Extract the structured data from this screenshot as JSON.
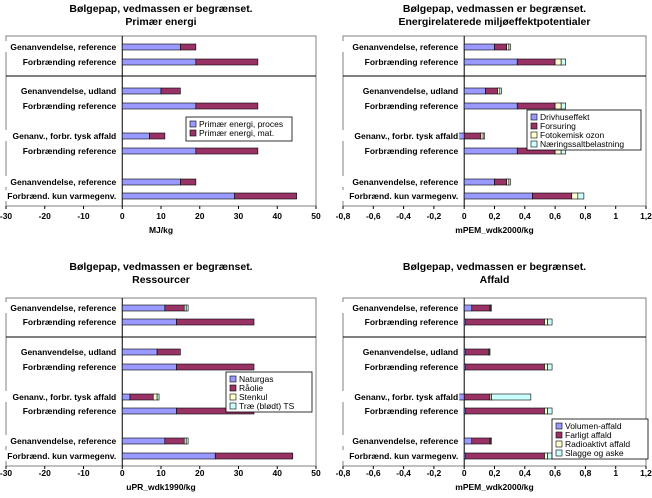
{
  "chart_data": [
    {
      "type": "bar",
      "orientation": "horizontal",
      "stacked": true,
      "title": "Bølgepap, vedmassen er begrænset.",
      "subtitle": "Primær energi",
      "xlabel": "MJ/kg",
      "xlim": [
        -30,
        50
      ],
      "xticks": [
        "-30",
        "-20",
        "-10",
        "0",
        "10",
        "20",
        "30",
        "40",
        "50"
      ],
      "grid": false,
      "legend_position": "middle-right",
      "categories": [
        "Genanvendelse, reference",
        "Forbrænding reference",
        "Genanvendelse, udland",
        "Forbrænding reference",
        "Genanv., forbr. tysk affald",
        "Forbrænding reference",
        "Genanvendelse, reference",
        "Forbrænd. kun varmegenv."
      ],
      "series": [
        {
          "name": "Primær energi, proces",
          "color": "#9999ff",
          "values": [
            15,
            19,
            10,
            19,
            7,
            19,
            15,
            29
          ]
        },
        {
          "name": "Primær energi, mat.",
          "color": "#993366",
          "values": [
            4,
            16,
            5,
            16,
            4,
            16,
            4,
            16
          ]
        }
      ]
    },
    {
      "type": "bar",
      "orientation": "horizontal",
      "stacked": true,
      "title": "Bølgepap, vedmassen er begrænset.",
      "subtitle": "Energirelaterede miljøeffektpotentialer",
      "xlabel": "mPEM_wdk2000/kg",
      "xlim": [
        -0.8,
        1.2
      ],
      "xticks": [
        "-0,8",
        "-0,6",
        "-0,4",
        "-0,2",
        "0",
        "0,2",
        "0,4",
        "0,6",
        "0,8",
        "1",
        "1,2"
      ],
      "grid": false,
      "legend_position": "middle-right",
      "categories": [
        "Genanvendelse, reference",
        "Forbrænding reference",
        "Genanvendelse, udland",
        "Forbrænding reference",
        "Genanv., forbr. tysk affald",
        "Forbrænding reference",
        "Genanvendelse, reference",
        "Forbrænd. kun varmegenv."
      ],
      "series": [
        {
          "name": "Drivhuseffekt",
          "color": "#9999ff",
          "values": [
            0.2,
            0.35,
            0.14,
            0.35,
            -0.06,
            0.35,
            0.2,
            0.45
          ]
        },
        {
          "name": "Forsuring",
          "color": "#993366",
          "values": [
            0.08,
            0.25,
            0.08,
            0.25,
            0.11,
            0.25,
            0.08,
            0.26
          ]
        },
        {
          "name": "Fotokemisk ozon",
          "color": "#ffffcc",
          "values": [
            0.015,
            0.04,
            0.015,
            0.04,
            0.015,
            0.04,
            0.015,
            0.04
          ]
        },
        {
          "name": "Næringssaltbelastning",
          "color": "#ccffff",
          "values": [
            0.01,
            0.03,
            0.01,
            0.03,
            0.01,
            0.03,
            0.01,
            0.04
          ]
        }
      ]
    },
    {
      "type": "bar",
      "orientation": "horizontal",
      "stacked": true,
      "title": "Bølgepap, vedmassen er begrænset.",
      "subtitle": "Ressourcer",
      "xlabel": "uPR_wdk1990/kg",
      "xlim": [
        -30,
        50
      ],
      "xticks": [
        "-30",
        "-20",
        "-10",
        "0",
        "10",
        "20",
        "30",
        "40",
        "50"
      ],
      "grid": false,
      "legend_position": "middle-right",
      "categories": [
        "Genanvendelse, reference",
        "Forbrænding reference",
        "Genanvendelse, udland",
        "Forbrænding reference",
        "Genanv., forbr. tysk affald",
        "Forbrænding reference",
        "Genanvendelse, reference",
        "Forbrænd. kun varmegenv."
      ],
      "series": [
        {
          "name": "Naturgas",
          "color": "#9999ff",
          "values": [
            11,
            14,
            9,
            14,
            2,
            14,
            11,
            24
          ]
        },
        {
          "name": "Råolie",
          "color": "#993366",
          "values": [
            5,
            20,
            6,
            20,
            6,
            20,
            5,
            20
          ]
        },
        {
          "name": "Stenkul",
          "color": "#ffffcc",
          "values": [
            0.5,
            0,
            0,
            0,
            1,
            0,
            0.5,
            0
          ]
        },
        {
          "name": "Træ (blødt) TS",
          "color": "#ccffff",
          "values": [
            0.5,
            0,
            0,
            0,
            0.5,
            0,
            0.5,
            0
          ]
        }
      ]
    },
    {
      "type": "bar",
      "orientation": "horizontal",
      "stacked": true,
      "title": "Bølgepap, vedmassen er begrænset.",
      "subtitle": "Affald",
      "xlabel": "mPEM_wdk2000/kg",
      "xlim": [
        -0.8,
        1.2
      ],
      "xticks": [
        "-0,8",
        "-0,6",
        "-0,4",
        "-0,2",
        "0",
        "0,2",
        "0,4",
        "0,6",
        "0,8",
        "1",
        "1,2"
      ],
      "grid": false,
      "legend_position": "middle-right",
      "categories": [
        "Genanvendelse, reference",
        "Forbrænding reference",
        "Genanvendelse, udland",
        "Forbrænding reference",
        "Genanv., forbr. tysk affald",
        "Forbrænding reference",
        "Genanvendelse, reference",
        "Forbrænd. kun varmegenv."
      ],
      "series": [
        {
          "name": "Volumen-affald",
          "color": "#9999ff",
          "values": [
            0.05,
            0.01,
            0.01,
            0.01,
            -0.08,
            0.01,
            0.05,
            0.01
          ]
        },
        {
          "name": "Farligt affald",
          "color": "#993366",
          "values": [
            0.12,
            0.52,
            0.15,
            0.52,
            0.17,
            0.52,
            0.12,
            0.52
          ]
        },
        {
          "name": "Radioaktivt affald",
          "color": "#ffffcc",
          "values": [
            0.005,
            0.02,
            0.005,
            0.02,
            0.01,
            0.02,
            0.005,
            0.02
          ]
        },
        {
          "name": "Slagge og aske",
          "color": "#ccffff",
          "values": [
            0.003,
            0.03,
            0.003,
            0.03,
            0.26,
            0.03,
            0.003,
            0.03
          ]
        }
      ]
    }
  ]
}
